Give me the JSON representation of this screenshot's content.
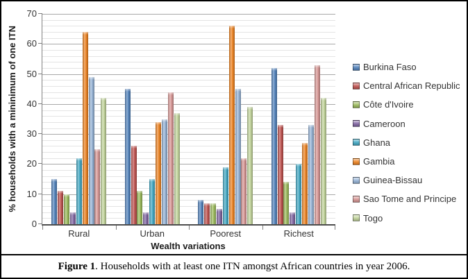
{
  "chart_data": {
    "type": "bar",
    "title": "",
    "xlabel": "Wealth variations",
    "ylabel": "% households with a mininimum of one ITN",
    "categories": [
      "Rural",
      "Urban",
      "Poorest",
      "Richest"
    ],
    "series": [
      {
        "name": "Burkina Faso",
        "color": "#4F81BD",
        "values": [
          15,
          45,
          8,
          52
        ]
      },
      {
        "name": "Central African Republic",
        "color": "#C0504D",
        "values": [
          11,
          26,
          7,
          33
        ]
      },
      {
        "name": "Côte d'Ivoire",
        "color": "#9BBB59",
        "values": [
          10,
          11,
          7,
          14
        ]
      },
      {
        "name": "Cameroon",
        "color": "#8064A2",
        "values": [
          4,
          4,
          5,
          4
        ]
      },
      {
        "name": "Ghana",
        "color": "#3FA8C4",
        "values": [
          22,
          15,
          19,
          20
        ]
      },
      {
        "name": "Gambia",
        "color": "#F0821E",
        "values": [
          64,
          34,
          66,
          27
        ]
      },
      {
        "name": "Guinea-Bissau",
        "color": "#95B3D7",
        "values": [
          49,
          35,
          45,
          33
        ]
      },
      {
        "name": "Sao Tome and Principe",
        "color": "#D99694",
        "values": [
          25,
          44,
          22,
          53
        ]
      },
      {
        "name": "Togo",
        "color": "#C3D69B",
        "values": [
          42,
          37,
          39,
          42
        ]
      }
    ],
    "y_axis": {
      "min": 0,
      "max": 70,
      "major_step": 10,
      "minor_step": 2,
      "tick_labels": [
        "0",
        "10",
        "20",
        "30",
        "40",
        "50",
        "60",
        "70"
      ]
    },
    "grid": "major-and-minor-horizontal",
    "legend_position": "right"
  },
  "caption": {
    "label": "Figure 1",
    "text": ". Households with at least one ITN amongst African countries in year 2006."
  }
}
